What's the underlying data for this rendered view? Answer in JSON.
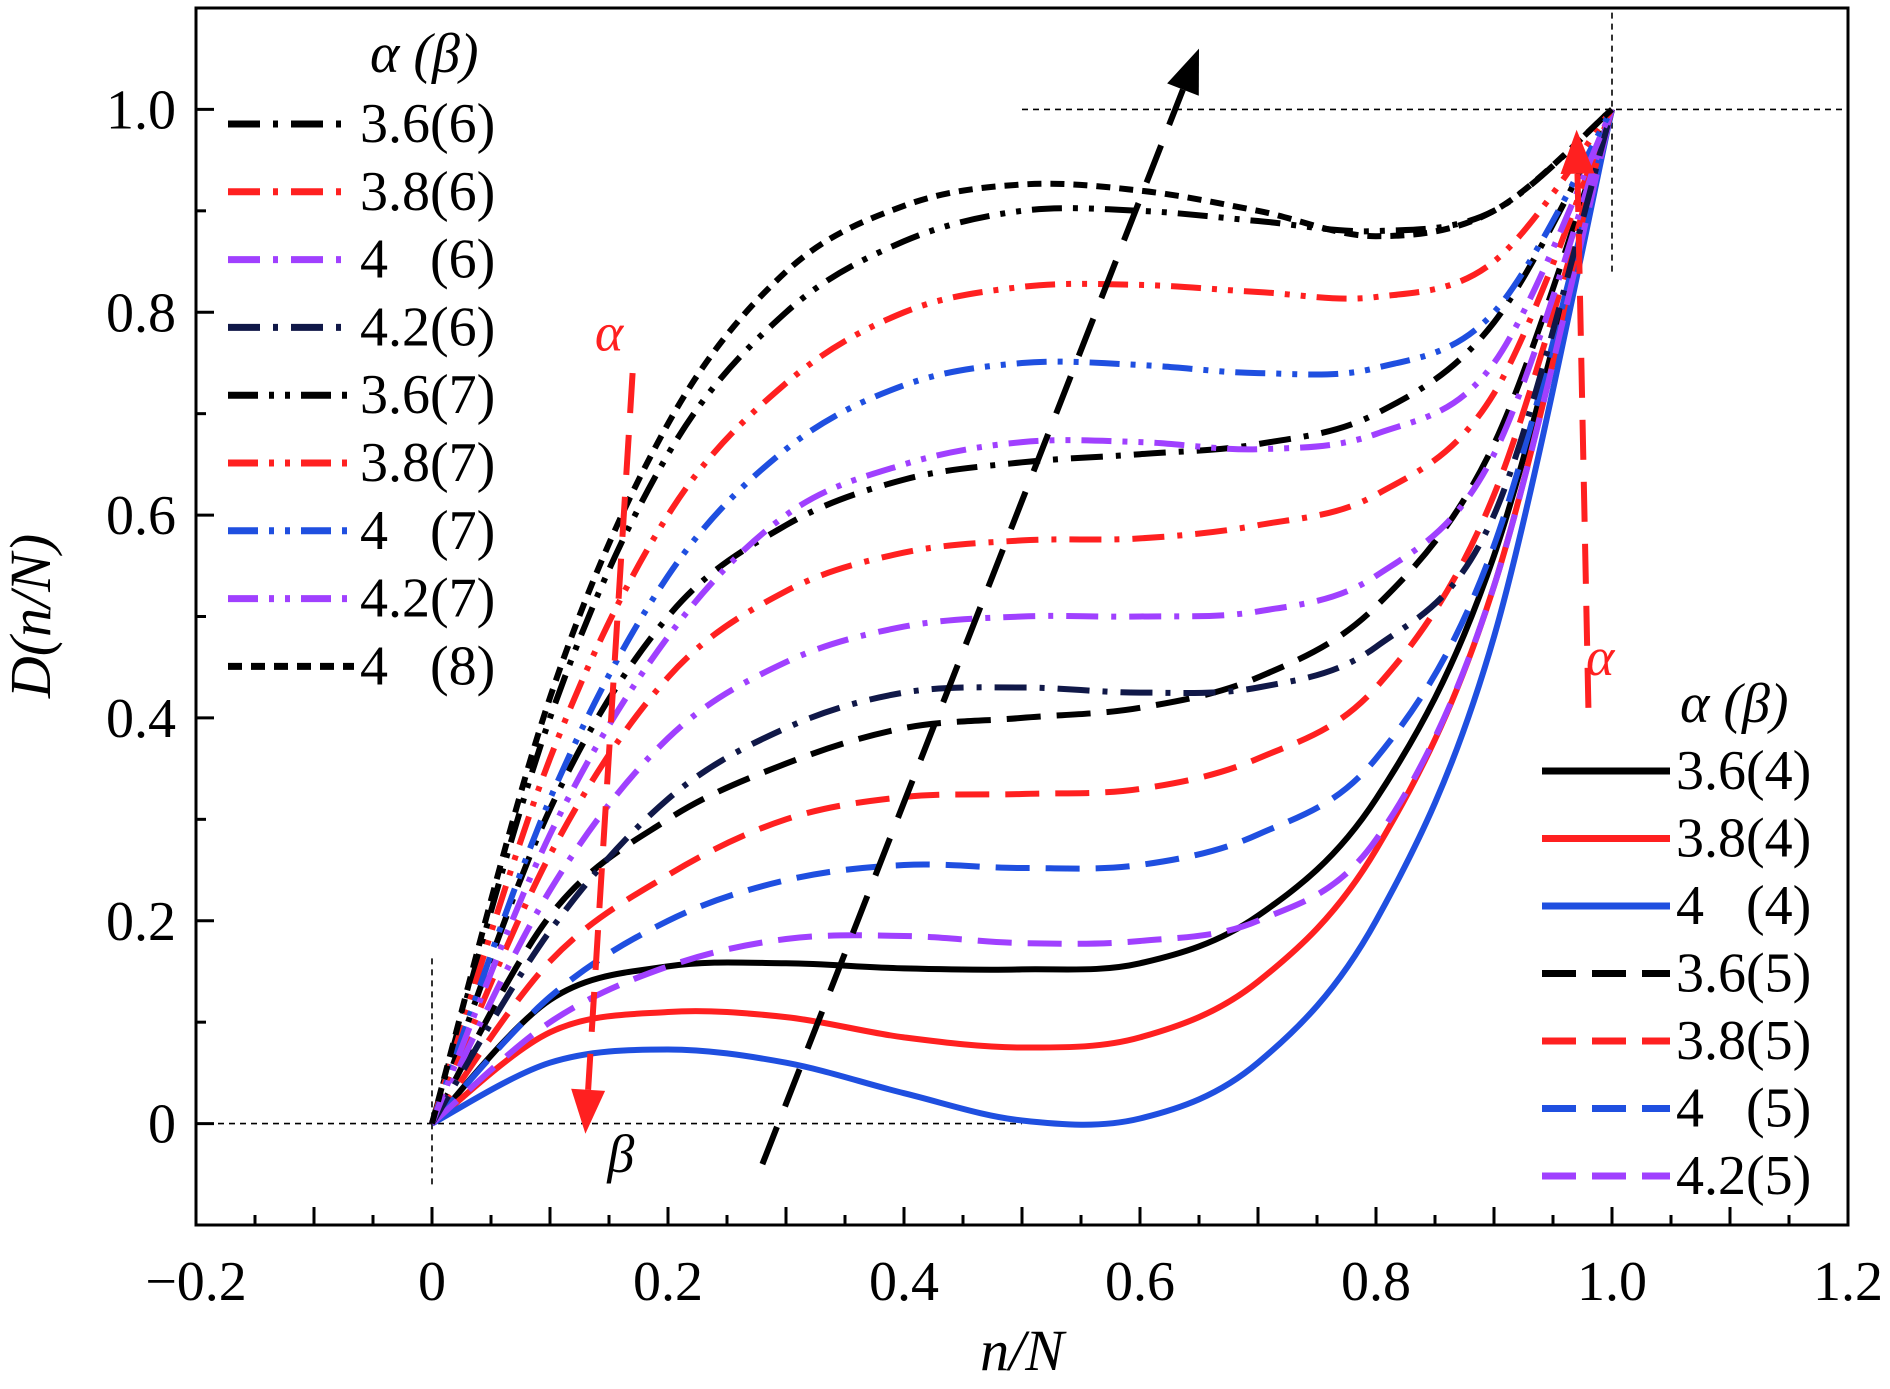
{
  "chart_data": {
    "type": "line",
    "xlabel": "n/N",
    "ylabel": "D(n/N)",
    "xlim": [
      -0.2,
      1.2
    ],
    "ylim": [
      -0.1,
      1.1
    ],
    "x_ticks": [
      "−0.2",
      "0",
      "0.2",
      "0.4",
      "0.6",
      "0.8",
      "1.0",
      "1.2"
    ],
    "y_ticks": [
      "0",
      "0.2",
      "0.4",
      "0.6",
      "0.8",
      "1.0"
    ],
    "grid": false,
    "x": [
      0,
      0.1,
      0.2,
      0.3,
      0.4,
      0.5,
      0.6,
      0.7,
      0.8,
      0.9,
      1.0
    ],
    "series": [
      {
        "name": "3.6(4)",
        "color": "#000000",
        "style": "solid",
        "values": [
          0,
          0.122,
          0.155,
          0.158,
          0.153,
          0.152,
          0.158,
          0.205,
          0.32,
          0.56,
          1.0
        ]
      },
      {
        "name": "3.8(4)",
        "color": "#ff2020",
        "style": "solid",
        "values": [
          0,
          0.09,
          0.11,
          0.105,
          0.085,
          0.075,
          0.085,
          0.14,
          0.27,
          0.53,
          1.0
        ]
      },
      {
        "name": "4   (4)",
        "color": "#1f4fe0",
        "style": "solid",
        "values": [
          0,
          0.06,
          0.073,
          0.06,
          0.03,
          0.003,
          0.005,
          0.06,
          0.2,
          0.48,
          1.0
        ]
      },
      {
        "name": "3.6(5)",
        "color": "#000000",
        "style": "dash",
        "values": [
          0,
          0.205,
          0.3,
          0.355,
          0.39,
          0.4,
          0.41,
          0.44,
          0.51,
          0.67,
          1.0
        ]
      },
      {
        "name": "3.8(5)",
        "color": "#ff2020",
        "style": "dash",
        "values": [
          0,
          0.16,
          0.245,
          0.3,
          0.322,
          0.325,
          0.33,
          0.36,
          0.43,
          0.62,
          1.0
        ]
      },
      {
        "name": "4   (5)",
        "color": "#1f4fe0",
        "style": "dash",
        "values": [
          0,
          0.125,
          0.2,
          0.24,
          0.255,
          0.252,
          0.255,
          0.285,
          0.36,
          0.57,
          1.0
        ]
      },
      {
        "name": "4.2(5)",
        "color": "#a040ff",
        "style": "dash",
        "values": [
          0,
          0.1,
          0.155,
          0.182,
          0.185,
          0.178,
          0.18,
          0.2,
          0.28,
          0.53,
          1.0
        ]
      },
      {
        "name": "3.6(6)",
        "color": "#000000",
        "style": "dashdot",
        "values": [
          0,
          0.31,
          0.5,
          0.59,
          0.635,
          0.652,
          0.66,
          0.67,
          0.7,
          0.79,
          1.0
        ]
      },
      {
        "name": "3.8(6)",
        "color": "#ff2020",
        "style": "dashdot",
        "values": [
          0,
          0.265,
          0.44,
          0.525,
          0.563,
          0.575,
          0.577,
          0.59,
          0.62,
          0.72,
          1.0
        ]
      },
      {
        "name": "4   (6)",
        "color": "#a040ff",
        "style": "dashdot",
        "values": [
          0,
          0.23,
          0.38,
          0.455,
          0.49,
          0.5,
          0.5,
          0.505,
          0.54,
          0.66,
          1.0
        ]
      },
      {
        "name": "4.2(6)",
        "color": "#101848",
        "style": "dashdot",
        "values": [
          0,
          0.19,
          0.32,
          0.39,
          0.425,
          0.43,
          0.425,
          0.43,
          0.47,
          0.6,
          1.0
        ]
      },
      {
        "name": "3.6(7)",
        "color": "#000000",
        "style": "dashdotdot",
        "values": [
          0,
          0.4,
          0.66,
          0.8,
          0.87,
          0.9,
          0.9,
          0.89,
          0.88,
          0.9,
          1.0
        ]
      },
      {
        "name": "3.8(7)",
        "color": "#ff2020",
        "style": "dashdotdot",
        "values": [
          0,
          0.36,
          0.6,
          0.73,
          0.8,
          0.825,
          0.827,
          0.82,
          0.815,
          0.85,
          1.0
        ]
      },
      {
        "name": "4   (7)",
        "color": "#1f4fe0",
        "style": "dashdotdot",
        "values": [
          0,
          0.32,
          0.54,
          0.665,
          0.728,
          0.75,
          0.748,
          0.74,
          0.745,
          0.8,
          1.0
        ]
      },
      {
        "name": "4.2(7)",
        "color": "#a040ff",
        "style": "dashdotdot",
        "values": [
          0,
          0.285,
          0.48,
          0.6,
          0.65,
          0.672,
          0.672,
          0.665,
          0.68,
          0.75,
          1.0
        ]
      },
      {
        "name": "4   (8)",
        "color": "#000000",
        "style": "shortdash",
        "values": [
          0,
          0.42,
          0.69,
          0.84,
          0.905,
          0.926,
          0.92,
          0.9,
          0.875,
          0.9,
          1.0
        ]
      }
    ],
    "legend_left": {
      "title": "α (β)",
      "placement": "top-left",
      "entries": [
        "3.6(6)",
        "3.8(6)",
        "4   (6)",
        "4.2(6)",
        "3.6(7)",
        "3.8(7)",
        "4   (7)",
        "4.2(7)",
        "4   (8)"
      ]
    },
    "legend_right": {
      "title": "α (β)",
      "placement": "bottom-right",
      "entries": [
        "3.6(4)",
        "3.8(4)",
        "4   (4)",
        "3.6(5)",
        "3.8(5)",
        "4   (5)",
        "4.2(5)"
      ]
    },
    "annotations": [
      {
        "text": "α",
        "color": "#ff2020",
        "x": 0.15,
        "y": 0.78
      },
      {
        "text": "β",
        "color": "#000000",
        "x": 0.16,
        "y": -0.03
      },
      {
        "text": "α",
        "color": "#ff2020",
        "x": 0.99,
        "y": 0.46
      }
    ],
    "arrows": [
      {
        "color": "#000000",
        "from": [
          0.28,
          -0.04
        ],
        "to": [
          0.65,
          1.06
        ]
      },
      {
        "color": "#ff2020",
        "from": [
          0.17,
          0.74
        ],
        "to": [
          0.13,
          -0.01
        ]
      },
      {
        "color": "#ff2020",
        "from": [
          0.98,
          0.41
        ],
        "to": [
          0.97,
          0.98
        ]
      }
    ],
    "reference_lines": [
      {
        "axis": "y",
        "value": 0,
        "from": -0.2,
        "to": 0.5
      },
      {
        "axis": "y",
        "value": 1.0,
        "from": 0.5,
        "to": 1.2
      },
      {
        "axis": "x",
        "value": 0,
        "from": -0.06,
        "to": 0.165
      },
      {
        "axis": "x",
        "value": 1.0,
        "from": 0.84,
        "to": 1.1
      }
    ]
  }
}
